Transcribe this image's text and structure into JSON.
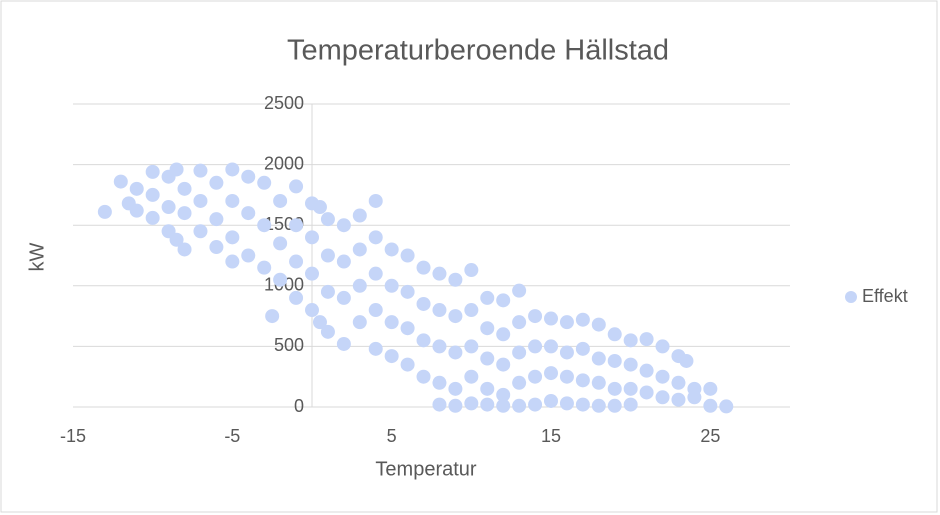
{
  "chart_data": {
    "type": "scatter",
    "title": "Temperaturberoende Hällstad",
    "xlabel": "Temperatur",
    "ylabel": "kW",
    "xlim": [
      -15,
      30
    ],
    "xticks": [
      -15,
      -5,
      5,
      15,
      25
    ],
    "ylim": [
      0,
      2500
    ],
    "yticks": [
      0,
      500,
      1000,
      1500,
      2000,
      2500
    ],
    "grid": true,
    "legend": "right",
    "series": [
      {
        "name": "Effekt",
        "color": "#c5d5f8",
        "x": [
          -13,
          -12,
          -11.5,
          -11,
          -11,
          -10,
          -10,
          -10,
          -9,
          -9,
          -9,
          -8.5,
          -8.5,
          -8,
          -8,
          -8,
          -7,
          -7,
          -7,
          -6,
          -6,
          -6,
          -5,
          -5,
          -5,
          -5,
          -4,
          -4,
          -4,
          -3,
          -3,
          -3,
          -2.5,
          -2,
          -2,
          -2,
          -1,
          -1,
          -1,
          -1,
          0,
          0,
          0,
          0,
          0.5,
          0.5,
          1,
          1,
          1,
          1,
          2,
          2,
          2,
          2,
          3,
          3,
          3,
          3,
          4,
          4,
          4,
          4,
          4,
          5,
          5,
          5,
          5,
          6,
          6,
          6,
          6,
          7,
          7,
          7,
          7,
          8,
          8,
          8,
          8,
          8,
          9,
          9,
          9,
          9,
          9,
          10,
          10,
          10,
          10,
          10,
          11,
          11,
          11,
          11,
          11,
          12,
          12,
          12,
          12,
          12,
          13,
          13,
          13,
          13,
          13,
          14,
          14,
          14,
          14,
          15,
          15,
          15,
          15,
          16,
          16,
          16,
          16,
          17,
          17,
          17,
          17,
          18,
          18,
          18,
          18,
          19,
          19,
          19,
          19,
          20,
          20,
          20,
          20,
          21,
          21,
          21,
          22,
          22,
          22,
          23,
          23,
          23,
          23.5,
          24,
          24,
          25,
          25,
          26
        ],
        "values": [
          1610,
          1860,
          1680,
          1800,
          1620,
          1940,
          1750,
          1560,
          1900,
          1650,
          1450,
          1960,
          1380,
          1800,
          1600,
          1300,
          1950,
          1700,
          1450,
          1850,
          1550,
          1320,
          1960,
          1700,
          1400,
          1200,
          1900,
          1600,
          1250,
          1850,
          1500,
          1150,
          750,
          1700,
          1350,
          1050,
          1820,
          1500,
          1200,
          900,
          1680,
          1400,
          1100,
          800,
          1650,
          700,
          1550,
          1250,
          950,
          620,
          1500,
          1200,
          900,
          520,
          1580,
          1300,
          1000,
          700,
          1700,
          1400,
          1100,
          800,
          480,
          1300,
          1000,
          700,
          420,
          1250,
          950,
          650,
          350,
          1150,
          850,
          550,
          250,
          1100,
          800,
          500,
          200,
          20,
          1050,
          750,
          450,
          150,
          10,
          1130,
          800,
          500,
          250,
          30,
          900,
          650,
          400,
          150,
          20,
          880,
          600,
          350,
          100,
          10,
          960,
          700,
          450,
          200,
          10,
          750,
          500,
          250,
          20,
          730,
          500,
          280,
          50,
          700,
          450,
          250,
          30,
          720,
          480,
          220,
          20,
          680,
          400,
          200,
          10,
          600,
          380,
          150,
          10,
          550,
          350,
          150,
          20,
          560,
          300,
          120,
          500,
          250,
          80,
          420,
          200,
          60,
          380,
          150,
          80,
          150,
          10,
          5
        ]
      }
    ]
  }
}
